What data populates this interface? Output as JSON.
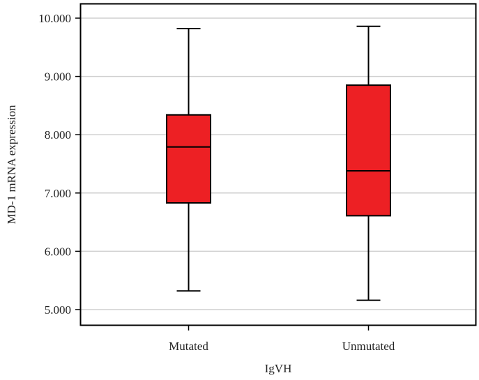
{
  "chart_data": {
    "type": "box",
    "xlabel": "IgVH",
    "ylabel": "MD-1 mRNA expression",
    "ylim": [
      4.8,
      10.25
    ],
    "yticks": [
      5,
      6,
      7,
      8,
      9,
      10
    ],
    "ytick_labels": [
      "5.000",
      "6.000",
      "7.000",
      "8.000",
      "9.000",
      "10.000"
    ],
    "categories": [
      "Mutated",
      "Unmutated"
    ],
    "boxes": [
      {
        "category": "Mutated",
        "min": 5.32,
        "q1": 6.83,
        "median": 7.79,
        "q3": 8.34,
        "max": 9.82
      },
      {
        "category": "Unmutated",
        "min": 5.16,
        "q1": 6.61,
        "median": 7.38,
        "q3": 8.85,
        "max": 9.86
      }
    ],
    "grid": "horizontal",
    "box_color": "#ED2024"
  }
}
